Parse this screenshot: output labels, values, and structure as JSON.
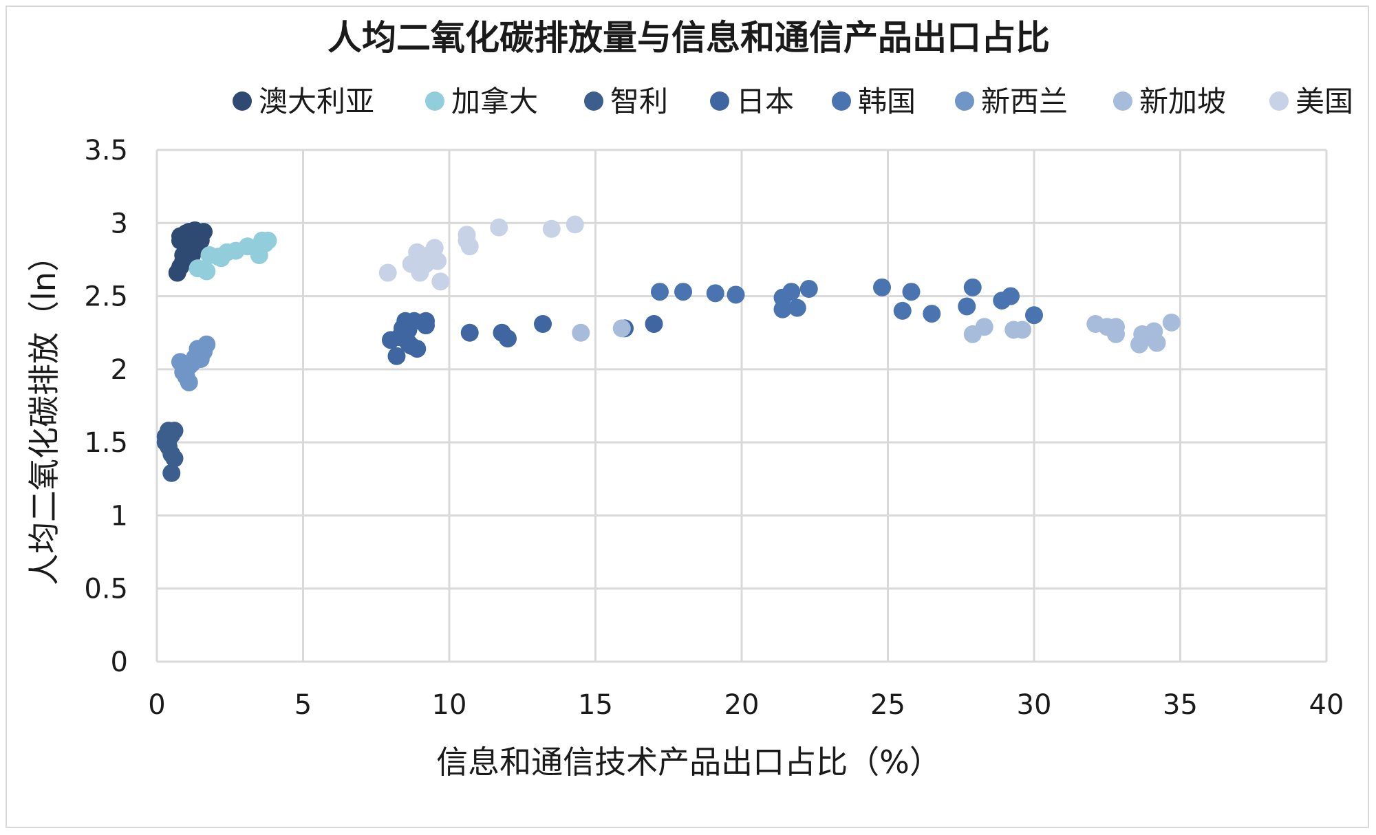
{
  "chart_data": {
    "type": "scatter",
    "title": "人均二氧化碳排放量与信息和通信产品出口占比",
    "xlabel": "信息和通信技术产品出口占比（%）",
    "ylabel": "人均二氧化碳排放（ln）",
    "xlim": [
      0,
      40
    ],
    "ylim": [
      0,
      3.5
    ],
    "x_ticks": [
      0,
      5,
      10,
      15,
      20,
      25,
      30,
      35,
      40
    ],
    "y_ticks": [
      0,
      0.5,
      1,
      1.5,
      2,
      2.5,
      3,
      3.5
    ],
    "x_tick_labels": [
      "0",
      "5",
      "10",
      "15",
      "20",
      "25",
      "30",
      "35",
      "40"
    ],
    "y_tick_labels": [
      "0",
      "0.5",
      "1",
      "1.5",
      "2",
      "2.5",
      "3",
      "3.5"
    ],
    "grid": true,
    "legend_position": "top",
    "series": [
      {
        "name": "澳大利亚",
        "color": "#2e4a72",
        "points": [
          [
            0.7,
            2.66
          ],
          [
            0.8,
            2.7
          ],
          [
            0.9,
            2.74
          ],
          [
            0.9,
            2.78
          ],
          [
            1.0,
            2.8
          ],
          [
            1.0,
            2.84
          ],
          [
            0.8,
            2.88
          ],
          [
            0.8,
            2.91
          ],
          [
            1.0,
            2.93
          ],
          [
            1.1,
            2.94
          ],
          [
            1.2,
            2.9
          ],
          [
            1.3,
            2.95
          ],
          [
            1.6,
            2.94
          ],
          [
            1.1,
            2.86
          ],
          [
            1.3,
            2.82
          ],
          [
            1.2,
            2.78
          ],
          [
            1.5,
            2.88
          ],
          [
            1.4,
            2.92
          ]
        ]
      },
      {
        "name": "加拿大",
        "color": "#92cddc",
        "points": [
          [
            1.4,
            2.69
          ],
          [
            1.7,
            2.67
          ],
          [
            1.8,
            2.78
          ],
          [
            2.1,
            2.77
          ],
          [
            2.4,
            2.8
          ],
          [
            2.7,
            2.81
          ],
          [
            3.1,
            2.84
          ],
          [
            3.5,
            2.78
          ],
          [
            3.6,
            2.88
          ],
          [
            3.8,
            2.88
          ],
          [
            3.7,
            2.86
          ],
          [
            2.2,
            2.76
          ]
        ]
      },
      {
        "name": "智利",
        "color": "#3b5e8c",
        "points": [
          [
            0.3,
            1.5
          ],
          [
            0.3,
            1.54
          ],
          [
            0.4,
            1.58
          ],
          [
            0.4,
            1.47
          ],
          [
            0.5,
            1.42
          ],
          [
            0.6,
            1.39
          ],
          [
            0.5,
            1.29
          ],
          [
            0.6,
            1.58
          ],
          [
            0.4,
            1.52
          ],
          [
            0.5,
            1.55
          ]
        ]
      },
      {
        "name": "日本",
        "color": "#3f66a0",
        "points": [
          [
            8.0,
            2.2
          ],
          [
            8.2,
            2.09
          ],
          [
            8.4,
            2.24
          ],
          [
            8.5,
            2.3
          ],
          [
            8.6,
            2.27
          ],
          [
            8.7,
            2.16
          ],
          [
            8.8,
            2.33
          ],
          [
            8.9,
            2.14
          ],
          [
            9.2,
            2.3
          ],
          [
            9.2,
            2.33
          ],
          [
            8.4,
            2.28
          ],
          [
            8.3,
            2.22
          ],
          [
            8.6,
            2.18
          ],
          [
            8.5,
            2.33
          ],
          [
            10.7,
            2.25
          ],
          [
            11.8,
            2.25
          ],
          [
            12.0,
            2.21
          ],
          [
            13.2,
            2.31
          ],
          [
            17.0,
            2.31
          ],
          [
            16.0,
            2.28
          ]
        ]
      },
      {
        "name": "韩国",
        "color": "#4a74b0",
        "points": [
          [
            17.2,
            2.53
          ],
          [
            18.0,
            2.53
          ],
          [
            19.1,
            2.52
          ],
          [
            19.8,
            2.51
          ],
          [
            21.4,
            2.49
          ],
          [
            21.7,
            2.53
          ],
          [
            21.4,
            2.41
          ],
          [
            21.9,
            2.42
          ],
          [
            22.3,
            2.55
          ],
          [
            24.8,
            2.56
          ],
          [
            25.5,
            2.4
          ],
          [
            25.8,
            2.53
          ],
          [
            26.5,
            2.38
          ],
          [
            27.7,
            2.43
          ],
          [
            27.9,
            2.56
          ],
          [
            28.9,
            2.47
          ],
          [
            29.2,
            2.5
          ],
          [
            30.0,
            2.37
          ]
        ]
      },
      {
        "name": "新西兰",
        "color": "#7096c8",
        "points": [
          [
            0.8,
            2.05
          ],
          [
            1.0,
            1.95
          ],
          [
            1.1,
            1.91
          ],
          [
            1.2,
            2.04
          ],
          [
            1.3,
            2.08
          ],
          [
            1.4,
            2.14
          ],
          [
            1.5,
            2.07
          ],
          [
            1.6,
            2.12
          ],
          [
            1.7,
            2.17
          ],
          [
            1.1,
            2.02
          ],
          [
            0.9,
            1.98
          ]
        ]
      },
      {
        "name": "新加坡",
        "color": "#a7bcdb",
        "points": [
          [
            14.5,
            2.25
          ],
          [
            15.9,
            2.28
          ],
          [
            27.9,
            2.24
          ],
          [
            28.3,
            2.29
          ],
          [
            29.3,
            2.27
          ],
          [
            29.6,
            2.27
          ],
          [
            32.1,
            2.31
          ],
          [
            32.5,
            2.29
          ],
          [
            32.8,
            2.29
          ],
          [
            32.8,
            2.24
          ],
          [
            33.6,
            2.17
          ],
          [
            33.7,
            2.24
          ],
          [
            33.9,
            2.22
          ],
          [
            34.1,
            2.26
          ],
          [
            34.2,
            2.18
          ],
          [
            34.7,
            2.32
          ]
        ]
      },
      {
        "name": "美国",
        "color": "#c8d2e6",
        "points": [
          [
            7.9,
            2.66
          ],
          [
            8.7,
            2.72
          ],
          [
            8.9,
            2.8
          ],
          [
            9.0,
            2.66
          ],
          [
            9.1,
            2.76
          ],
          [
            9.2,
            2.72
          ],
          [
            9.3,
            2.78
          ],
          [
            9.5,
            2.83
          ],
          [
            9.6,
            2.74
          ],
          [
            9.7,
            2.6
          ],
          [
            10.6,
            2.88
          ],
          [
            10.7,
            2.84
          ],
          [
            10.6,
            2.92
          ],
          [
            11.7,
            2.97
          ],
          [
            13.5,
            2.96
          ],
          [
            14.3,
            2.99
          ]
        ]
      }
    ]
  }
}
